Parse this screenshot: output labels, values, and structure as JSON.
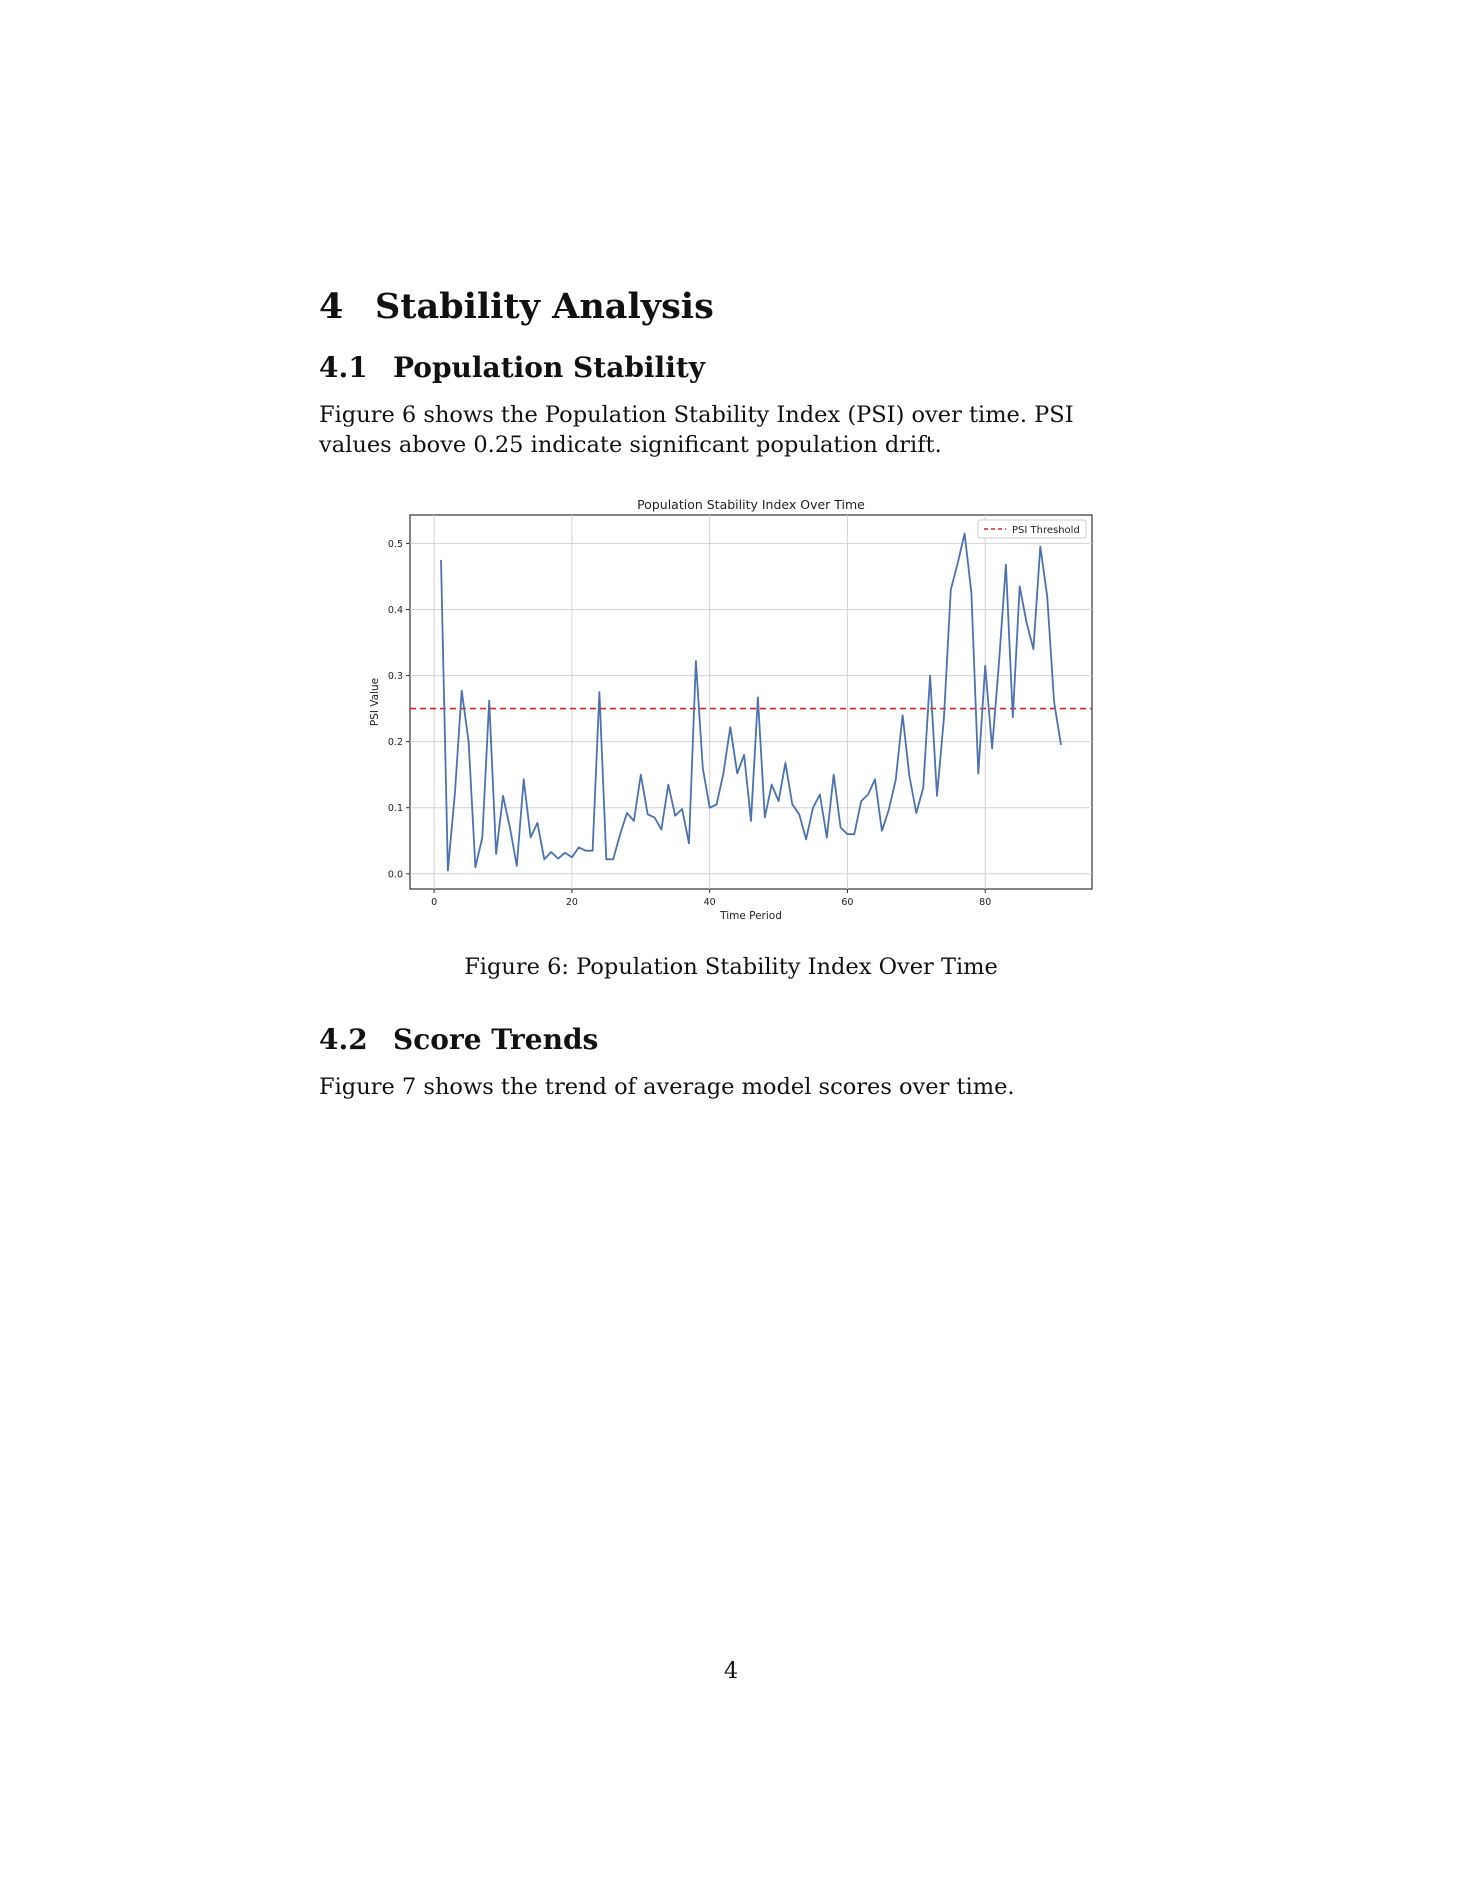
{
  "section": {
    "number": "4",
    "title": "Stability Analysis"
  },
  "subsection1": {
    "number": "4.1",
    "title": "Population Stability"
  },
  "paragraph1": "Figure 6 shows the Population Stability Index (PSI) over time. PSI values above 0.25 indicate significant population drift.",
  "figure": {
    "caption": "Figure 6: Population Stability Index Over Time"
  },
  "subsection2": {
    "number": "4.2",
    "title": "Score Trends"
  },
  "paragraph2": "Figure 7 shows the trend of average model scores over time.",
  "page_number": "4",
  "chart_data": {
    "type": "line",
    "title": "Population Stability Index Over Time",
    "xlabel": "Time Period",
    "ylabel": "PSI Value",
    "xlim": [
      -3.5,
      95.5
    ],
    "ylim": [
      -0.023,
      0.543
    ],
    "xticks": [
      0,
      20,
      40,
      60,
      80
    ],
    "yticks": [
      0.0,
      0.1,
      0.2,
      0.3,
      0.4,
      0.5
    ],
    "grid": true,
    "legend": {
      "position": "top-right",
      "entries": [
        "PSI Threshold"
      ]
    },
    "threshold": {
      "name": "PSI Threshold",
      "value": 0.25,
      "color": "#d62728",
      "style": "dashed"
    },
    "series": [
      {
        "color": "#4c72b0",
        "x": [
          1,
          2,
          3,
          4,
          5,
          6,
          7,
          8,
          9,
          10,
          11,
          12,
          13,
          14,
          15,
          16,
          17,
          18,
          19,
          20,
          21,
          22,
          23,
          24,
          25,
          26,
          27,
          28,
          29,
          30,
          31,
          32,
          33,
          34,
          35,
          36,
          37,
          38,
          39,
          40,
          41,
          42,
          43,
          44,
          45,
          46,
          47,
          48,
          49,
          50,
          51,
          52,
          53,
          54,
          55,
          56,
          57,
          58,
          59,
          60,
          61,
          62,
          63,
          64,
          65,
          66,
          67,
          68,
          69,
          70,
          71,
          72,
          73,
          74,
          75,
          76,
          77,
          78,
          79,
          80,
          81,
          82,
          83,
          84,
          85,
          86,
          87,
          88,
          89,
          90,
          91
        ],
        "values": [
          0.475,
          0.005,
          0.12,
          0.277,
          0.2,
          0.01,
          0.055,
          0.262,
          0.03,
          0.118,
          0.07,
          0.012,
          0.143,
          0.055,
          0.077,
          0.022,
          0.033,
          0.023,
          0.032,
          0.025,
          0.04,
          0.035,
          0.035,
          0.275,
          0.022,
          0.022,
          0.06,
          0.092,
          0.08,
          0.15,
          0.09,
          0.085,
          0.067,
          0.135,
          0.088,
          0.098,
          0.046,
          0.322,
          0.16,
          0.1,
          0.105,
          0.152,
          0.222,
          0.152,
          0.18,
          0.08,
          0.267,
          0.085,
          0.135,
          0.11,
          0.168,
          0.105,
          0.09,
          0.052,
          0.1,
          0.12,
          0.055,
          0.15,
          0.07,
          0.06,
          0.06,
          0.11,
          0.12,
          0.143,
          0.065,
          0.097,
          0.142,
          0.24,
          0.148,
          0.092,
          0.13,
          0.3,
          0.118,
          0.235,
          0.43,
          0.47,
          0.515,
          0.425,
          0.152,
          0.315,
          0.19,
          0.32,
          0.468,
          0.237,
          0.435,
          0.38,
          0.34,
          0.495,
          0.42,
          0.26,
          0.195
        ]
      }
    ]
  }
}
